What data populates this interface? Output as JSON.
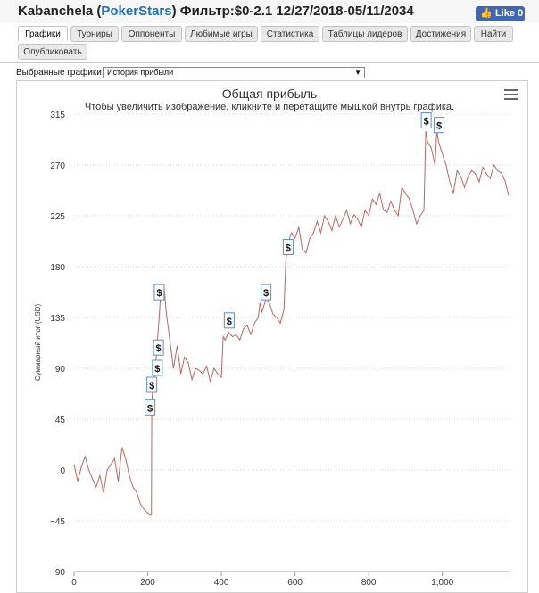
{
  "header": {
    "player": "Kabanchela",
    "site": "PokerStars",
    "filter": "Фильтр:$0-2.1 12/27/2018-05/11/2034",
    "like_label": "Like 0"
  },
  "tabs": [
    {
      "label": "Графики",
      "active": true
    },
    {
      "label": "Турниры"
    },
    {
      "label": "Оппоненты"
    },
    {
      "label": "Любимые игры"
    },
    {
      "label": "Статистика"
    },
    {
      "label": "Таблицы лидеров"
    },
    {
      "label": "Достижения"
    },
    {
      "label": "Найти"
    },
    {
      "label": "Опубликовать"
    }
  ],
  "selector": {
    "label": "Выбранные графики:",
    "selected": "История прибыли"
  },
  "chart_data": {
    "type": "line",
    "title": "Общая прибыль",
    "subtitle": "Чтобы увеличить изображение, кликните и перетащите мышкой внутрь графика.",
    "ylabel": "Суммарный итог (USD)",
    "xlabel": "",
    "ylim": [
      -90,
      315
    ],
    "xlim": [
      0,
      1180
    ],
    "y_ticks": [
      315,
      270,
      225,
      180,
      135,
      90,
      45,
      0,
      -45,
      -90
    ],
    "y_tick_labels": [
      "315",
      "270",
      "225",
      "180",
      "135",
      "90",
      "45",
      "0",
      "−45",
      "−90"
    ],
    "x_ticks": [
      0,
      200,
      400,
      600,
      800,
      1000
    ],
    "x_tick_labels": [
      "0",
      "200",
      "400",
      "600",
      "800",
      "1,000"
    ],
    "grid": true,
    "color": "#b96767",
    "series": [
      {
        "name": "Общая прибыль",
        "x": [
          0,
          10,
          20,
          30,
          40,
          50,
          60,
          70,
          80,
          90,
          100,
          110,
          120,
          130,
          140,
          150,
          160,
          170,
          180,
          190,
          200,
          210,
          211,
          215,
          220,
          225,
          230,
          235,
          240,
          245,
          250,
          260,
          270,
          280,
          290,
          300,
          310,
          320,
          330,
          340,
          350,
          360,
          370,
          380,
          390,
          400,
          405,
          410,
          420,
          430,
          440,
          450,
          460,
          470,
          480,
          490,
          500,
          505,
          510,
          520,
          530,
          540,
          550,
          560,
          570,
          575,
          580,
          590,
          600,
          610,
          620,
          630,
          640,
          650,
          660,
          670,
          680,
          690,
          700,
          710,
          720,
          730,
          740,
          750,
          760,
          770,
          780,
          790,
          800,
          810,
          820,
          830,
          840,
          850,
          860,
          870,
          880,
          890,
          900,
          910,
          920,
          930,
          940,
          950,
          955,
          960,
          970,
          980,
          985,
          990,
          1000,
          1010,
          1020,
          1030,
          1040,
          1050,
          1060,
          1070,
          1080,
          1090,
          1100,
          1110,
          1120,
          1130,
          1140,
          1150,
          1160,
          1170,
          1180
        ],
        "values": [
          5,
          -10,
          3,
          12,
          0,
          -8,
          -15,
          -5,
          -20,
          0,
          5,
          10,
          -10,
          20,
          10,
          -5,
          -15,
          -20,
          -30,
          -35,
          -38,
          -40,
          60,
          78,
          85,
          110,
          130,
          155,
          163,
          160,
          140,
          115,
          90,
          110,
          85,
          100,
          95,
          80,
          90,
          88,
          85,
          92,
          78,
          90,
          85,
          82,
          118,
          115,
          122,
          118,
          120,
          115,
          125,
          128,
          120,
          130,
          135,
          148,
          140,
          150,
          148,
          138,
          135,
          130,
          142,
          185,
          200,
          210,
          205,
          215,
          195,
          192,
          205,
          210,
          220,
          210,
          225,
          220,
          212,
          225,
          215,
          222,
          230,
          218,
          226,
          222,
          215,
          230,
          225,
          240,
          235,
          245,
          230,
          228,
          238,
          230,
          225,
          250,
          245,
          240,
          230,
          218,
          225,
          230,
          300,
          290,
          285,
          270,
          300,
          290,
          280,
          270,
          255,
          245,
          265,
          260,
          250,
          260,
          265,
          262,
          255,
          268,
          262,
          258,
          270,
          265,
          263,
          256,
          243
        ]
      }
    ],
    "markers": [
      {
        "x": 205,
        "y": 55,
        "label": "$"
      },
      {
        "x": 210,
        "y": 75,
        "label": "$"
      },
      {
        "x": 225,
        "y": 90,
        "label": "$"
      },
      {
        "x": 228,
        "y": 108,
        "label": "$"
      },
      {
        "x": 230,
        "y": 157,
        "label": "$"
      },
      {
        "x": 420,
        "y": 132,
        "label": "$"
      },
      {
        "x": 520,
        "y": 157,
        "label": "$"
      },
      {
        "x": 580,
        "y": 197,
        "label": "$"
      },
      {
        "x": 955,
        "y": 309,
        "label": "$"
      },
      {
        "x": 990,
        "y": 305,
        "label": "$"
      }
    ]
  }
}
